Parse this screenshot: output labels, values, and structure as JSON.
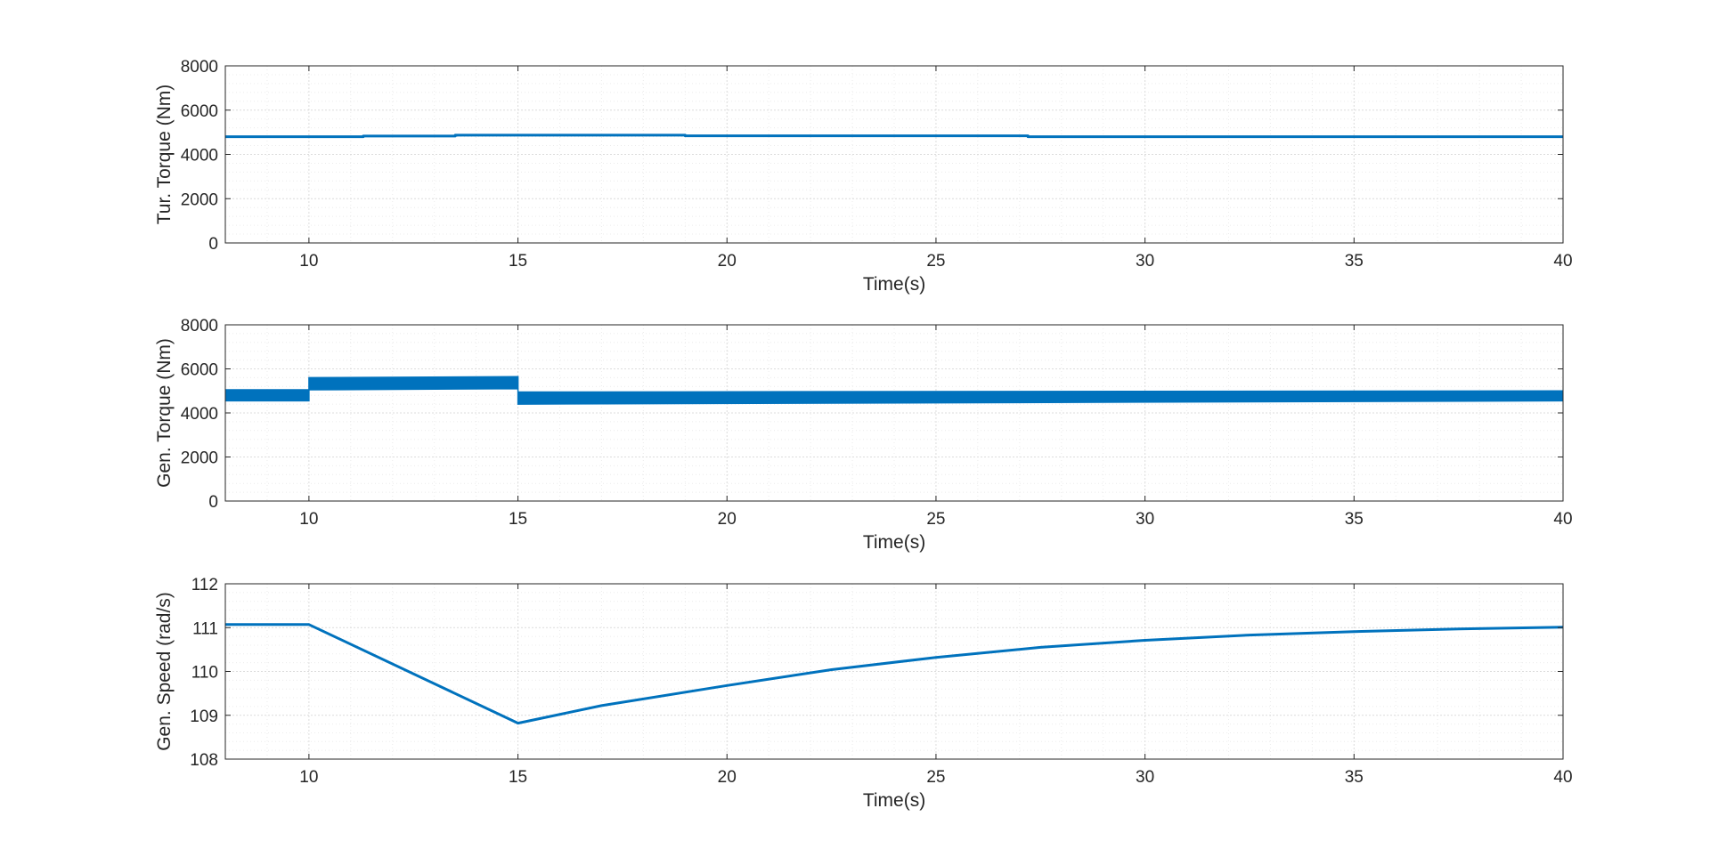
{
  "figure": {
    "background": "#ffffff",
    "line_color": "#0072BD",
    "axes_color": "#262626",
    "grid_color": "#dcdcdc",
    "minor_grid_color": "#ececec"
  },
  "chart_data": [
    {
      "type": "line",
      "title": "",
      "xlabel": "Time(s)",
      "ylabel": "Tur. Torque (Nm)",
      "xlim": [
        8,
        40
      ],
      "ylim": [
        0,
        8000
      ],
      "xticks": [
        10,
        15,
        20,
        25,
        30,
        35,
        40
      ],
      "yticks": [
        0,
        2000,
        4000,
        6000,
        8000
      ],
      "grid": true,
      "minor_grid": true,
      "series": [
        {
          "x": [
            8,
            11.3,
            11.3,
            13.5,
            13.5,
            19.0,
            19.0,
            27.2,
            27.2,
            40
          ],
          "y": [
            4800,
            4800,
            4830,
            4830,
            4870,
            4870,
            4840,
            4840,
            4800,
            4800
          ],
          "color": "#0072BD"
        }
      ]
    },
    {
      "type": "line",
      "title": "",
      "xlabel": "Time(s)",
      "ylabel": "Gen. Torque (Nm)",
      "xlim": [
        8,
        40
      ],
      "ylim": [
        0,
        8000
      ],
      "xticks": [
        10,
        15,
        20,
        25,
        30,
        35,
        40
      ],
      "yticks": [
        0,
        2000,
        4000,
        6000,
        8000
      ],
      "grid": true,
      "minor_grid": true,
      "series": [
        {
          "style": "band",
          "x": [
            8,
            10,
            10,
            15,
            15,
            40
          ],
          "upper": [
            5050,
            5050,
            5600,
            5650,
            4950,
            5000
          ],
          "lower": [
            4550,
            4550,
            5050,
            5100,
            4400,
            4550
          ],
          "color": "#0072BD"
        }
      ]
    },
    {
      "type": "line",
      "title": "",
      "xlabel": "Time(s)",
      "ylabel": "Gen. Speed (rad/s)",
      "xlim": [
        8,
        40
      ],
      "ylim": [
        108,
        112
      ],
      "xticks": [
        10,
        15,
        20,
        25,
        30,
        35,
        40
      ],
      "yticks": [
        108,
        109,
        110,
        111,
        112
      ],
      "grid": true,
      "minor_grid": true,
      "series": [
        {
          "x": [
            8,
            10,
            15,
            17,
            20,
            22.5,
            25,
            27.5,
            30,
            32.5,
            35,
            37.5,
            40
          ],
          "y": [
            111.07,
            111.07,
            108.82,
            109.22,
            109.68,
            110.04,
            110.32,
            110.55,
            110.71,
            110.83,
            110.91,
            110.97,
            111.01
          ],
          "color": "#0072BD"
        }
      ]
    }
  ]
}
